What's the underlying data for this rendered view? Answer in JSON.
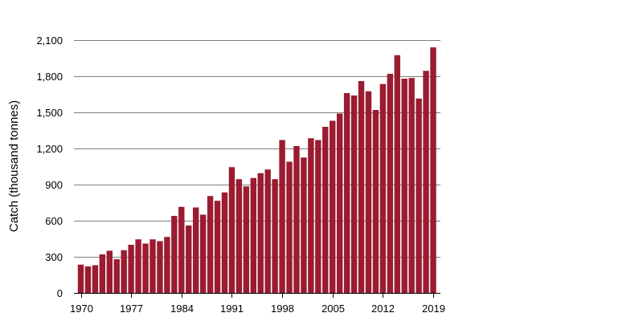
{
  "chart_data": {
    "type": "bar",
    "title": "",
    "xlabel": "",
    "ylabel": "Catch (thousand tonnes)",
    "ylim": [
      0,
      2100
    ],
    "yticks": [
      0,
      300,
      600,
      900,
      1200,
      1500,
      1800,
      2100
    ],
    "ytick_labels": [
      "0",
      "300",
      "600",
      "900",
      "1,200",
      "1,500",
      "1,800",
      "2,100"
    ],
    "xticks": [
      1970,
      1977,
      1984,
      1991,
      1998,
      2005,
      2012,
      2019
    ],
    "xtick_labels": [
      "1970",
      "1977",
      "1984",
      "1991",
      "1998",
      "2005",
      "2012",
      "2019"
    ],
    "grid": true,
    "bar_color": "#9b1b30",
    "years": [
      1970,
      1971,
      1972,
      1973,
      1974,
      1975,
      1976,
      1977,
      1978,
      1979,
      1980,
      1981,
      1982,
      1983,
      1984,
      1985,
      1986,
      1987,
      1988,
      1989,
      1990,
      1991,
      1992,
      1993,
      1994,
      1995,
      1996,
      1997,
      1998,
      1999,
      2000,
      2001,
      2002,
      2003,
      2004,
      2005,
      2006,
      2007,
      2008,
      2009,
      2010,
      2011,
      2012,
      2013,
      2014,
      2015,
      2016,
      2017,
      2018,
      2019
    ],
    "values": [
      235,
      220,
      230,
      320,
      350,
      280,
      355,
      400,
      445,
      410,
      445,
      430,
      465,
      640,
      715,
      560,
      710,
      650,
      805,
      765,
      835,
      1045,
      945,
      885,
      955,
      995,
      1025,
      945,
      1270,
      1090,
      1220,
      1125,
      1285,
      1270,
      1380,
      1430,
      1490,
      1660,
      1640,
      1760,
      1675,
      1520,
      1735,
      1820,
      1975,
      1780,
      1785,
      1615,
      1845,
      2040
    ]
  }
}
